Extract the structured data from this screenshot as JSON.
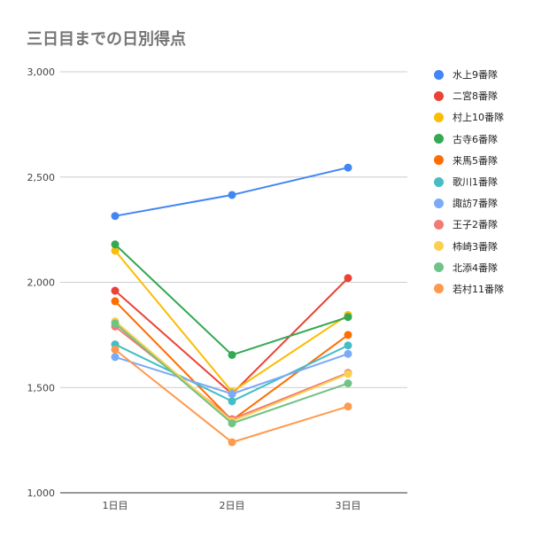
{
  "chart_data": {
    "type": "line",
    "title": "三日目までの日別得点",
    "xlabel": "",
    "ylabel": "",
    "categories": [
      "1日目",
      "2日目",
      "3日目"
    ],
    "ylim": [
      1000,
      3000
    ],
    "yticks": [
      1000,
      1500,
      2000,
      2500,
      3000
    ],
    "ytick_labels": [
      "1,000",
      "1,500",
      "2,000",
      "2,500",
      "3,000"
    ],
    "grid": true,
    "legend_position": "right",
    "series": [
      {
        "name": "水上9番隊",
        "color": "#4285f4",
        "values": [
          2315,
          2415,
          2545
        ]
      },
      {
        "name": "二宮8番隊",
        "color": "#ea4335",
        "values": [
          1960,
          1470,
          2020
        ]
      },
      {
        "name": "村上10番隊",
        "color": "#fbbc04",
        "values": [
          2150,
          1480,
          1845
        ]
      },
      {
        "name": "古寺6番隊",
        "color": "#34a853",
        "values": [
          2180,
          1655,
          1835
        ]
      },
      {
        "name": "来馬5番隊",
        "color": "#ff6d01",
        "values": [
          1910,
          1345,
          1750
        ]
      },
      {
        "name": "歌川1番隊",
        "color": "#46bdc6",
        "values": [
          1705,
          1435,
          1700
        ]
      },
      {
        "name": "諏訪7番隊",
        "color": "#7baaf7",
        "values": [
          1645,
          1470,
          1660
        ]
      },
      {
        "name": "王子2番隊",
        "color": "#f07b72",
        "values": [
          1790,
          1350,
          1570
        ]
      },
      {
        "name": "柿崎3番隊",
        "color": "#fcd04f",
        "values": [
          1815,
          1340,
          1565
        ]
      },
      {
        "name": "北添4番隊",
        "color": "#71c287",
        "values": [
          1805,
          1330,
          1520
        ]
      },
      {
        "name": "若村11番隊",
        "color": "#ff994d",
        "values": [
          1680,
          1240,
          1410
        ]
      }
    ]
  }
}
